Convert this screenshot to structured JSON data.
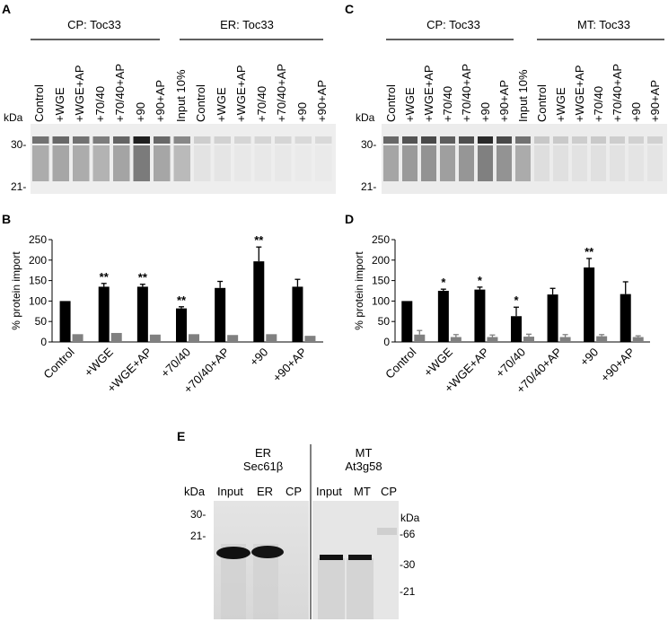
{
  "panels": {
    "A": {
      "letter": "A",
      "groups": [
        "CP: Toc33",
        "ER: Toc33"
      ],
      "lanes": [
        "Control",
        "+WGE",
        "+WGE+AP",
        "+70/40",
        "+70/40+AP",
        "+90",
        "+90+AP",
        "Input 10%",
        "Control",
        "+WGE",
        "+WGE+AP",
        "+70/40",
        "+70/40+AP",
        "+90",
        "+90+AP"
      ],
      "kda": "kDa",
      "mw": [
        "30-",
        "21-"
      ]
    },
    "C": {
      "letter": "C",
      "groups": [
        "CP: Toc33",
        "MT: Toc33"
      ],
      "lanes": [
        "Control",
        "+WGE",
        "+WGE+AP",
        "+70/40",
        "+70/40+AP",
        "+90",
        "+90+AP",
        "Input 10%",
        "Control",
        "+WGE",
        "+WGE+AP",
        "+70/40",
        "+70/40+AP",
        "+90",
        "+90+AP"
      ],
      "kda": "kDa",
      "mw": [
        "30-",
        "21-"
      ]
    },
    "B": {
      "letter": "B"
    },
    "D": {
      "letter": "D"
    },
    "E": {
      "letter": "E",
      "left": {
        "title1": "ER",
        "title2": "Sec61β",
        "lanes": [
          "Input",
          "ER",
          "CP"
        ],
        "kda": "kDa",
        "mw": [
          "30-",
          "21-"
        ]
      },
      "right": {
        "title1": "MT",
        "title2": "At3g58",
        "lanes": [
          "Input",
          "MT",
          "CP"
        ],
        "kda": "kDa",
        "mw": [
          "-66",
          "-30",
          "-21"
        ]
      }
    }
  },
  "chart_data": [
    {
      "type": "bar",
      "panel": "B",
      "categories": [
        "Control",
        "+WGE",
        "+WGE+AP",
        "+70/40",
        "+70/40+AP",
        "+90",
        "+90+AP"
      ],
      "ylabel": "% protein import",
      "ylim": [
        0,
        250
      ],
      "yticks": [
        0,
        50,
        100,
        150,
        200,
        250
      ],
      "series": [
        {
          "color": "#000000",
          "values": [
            100,
            135,
            135,
            82,
            132,
            197,
            135
          ],
          "errors": [
            0,
            8,
            6,
            4,
            16,
            35,
            18
          ]
        },
        {
          "color": "#808080",
          "values": [
            19,
            22,
            18,
            19,
            17,
            19,
            15
          ],
          "errors": [
            0,
            0,
            0,
            0,
            0,
            0,
            0
          ]
        }
      ],
      "annotations": [
        "",
        "**",
        "**",
        "**",
        "",
        "**",
        ""
      ]
    },
    {
      "type": "bar",
      "panel": "D",
      "categories": [
        "Control",
        "+WGE",
        "+WGE+AP",
        "+70/40",
        "+70/40+AP",
        "+90",
        "+90+AP"
      ],
      "ylabel": "% protein import",
      "ylim": [
        0,
        250
      ],
      "yticks": [
        0,
        50,
        100,
        150,
        200,
        250
      ],
      "series": [
        {
          "color": "#000000",
          "values": [
            100,
            125,
            128,
            63,
            116,
            182,
            117
          ],
          "errors": [
            0,
            4,
            6,
            22,
            15,
            22,
            30
          ]
        },
        {
          "color": "#808080",
          "values": [
            18,
            12,
            12,
            13,
            12,
            14,
            12
          ],
          "errors": [
            10,
            6,
            5,
            6,
            6,
            4,
            3
          ]
        }
      ],
      "annotations": [
        "",
        "*",
        "*",
        "*",
        "",
        "**",
        ""
      ]
    }
  ]
}
